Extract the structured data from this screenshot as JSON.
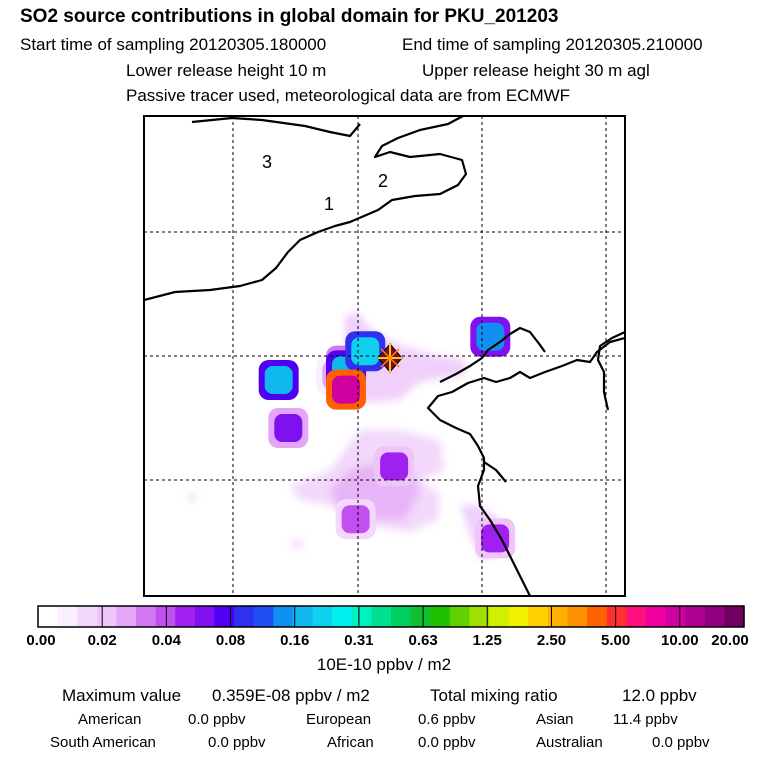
{
  "header": {
    "title": "SO2 source contributions in global domain for PKU_201203",
    "start_time": "Start time of sampling 20120305.180000",
    "end_time": "End time of sampling 20120305.210000",
    "lower_release": "Lower release height   10 m",
    "upper_release": "Upper release height   30 m    agl",
    "tracer_note": "Passive tracer used, meteorological data are from ECMWF"
  },
  "map": {
    "region_labels": [
      "3",
      "2",
      "1"
    ],
    "receptor_marker": "receptor-site"
  },
  "chart_data": {
    "type": "heatmap",
    "title": "SO2 source contributions in global domain for PKU_201203",
    "colorbar": {
      "tick_labels": [
        "0.00",
        "0.02",
        "0.04",
        "0.08",
        "0.16",
        "0.31",
        "0.63",
        "1.25",
        "2.50",
        "5.00",
        "10.00",
        "20.00"
      ],
      "units": "10E-10 ppbv / m2",
      "colors": [
        "#ffffff",
        "#fbeefe",
        "#f4d8fc",
        "#eec4fb",
        "#e3a6f8",
        "#d27af3",
        "#c050ef",
        "#a020f0",
        "#8010f0",
        "#5000f0",
        "#3030f0",
        "#2050f5",
        "#1090f0",
        "#10b8f0",
        "#10d0f0",
        "#00f0f0",
        "#00f0c0",
        "#00e090",
        "#00d060",
        "#10c030",
        "#20c000",
        "#60d000",
        "#a0e000",
        "#d0f000",
        "#f0f000",
        "#ffd000",
        "#ffb000",
        "#ff9000",
        "#ff6000",
        "#ff3030",
        "#ff1080",
        "#f000a0",
        "#d000a0",
        "#b00090",
        "#900080",
        "#700060"
      ]
    },
    "cells": [
      {
        "lon_rel": 0.42,
        "lat_rel": 0.57,
        "level": 32
      },
      {
        "lon_rel": 0.46,
        "lat_rel": 0.49,
        "level": 14
      },
      {
        "lon_rel": 0.42,
        "lat_rel": 0.53,
        "level": 13
      },
      {
        "lon_rel": 0.28,
        "lat_rel": 0.55,
        "level": 13
      },
      {
        "lon_rel": 0.72,
        "lat_rel": 0.46,
        "level": 12
      },
      {
        "lon_rel": 0.42,
        "lat_rel": 0.52,
        "level": 9
      },
      {
        "lon_rel": 0.42,
        "lat_rel": 0.55,
        "level": 9
      },
      {
        "lon_rel": 0.3,
        "lat_rel": 0.65,
        "level": 8
      },
      {
        "lon_rel": 0.52,
        "lat_rel": 0.73,
        "level": 7
      },
      {
        "lon_rel": 0.73,
        "lat_rel": 0.88,
        "level": 7
      },
      {
        "lon_rel": 0.44,
        "lat_rel": 0.84,
        "level": 6
      },
      {
        "lon_rel": 0.4,
        "lat_rel": 0.54,
        "level": 4
      }
    ]
  },
  "footer": {
    "max_label": "Maximum value",
    "max_value": "0.359E-08 ppbv / m2",
    "total_label": "Total mixing ratio",
    "total_value": "12.0 ppbv",
    "regions": [
      {
        "name": "American",
        "value": "0.0 ppbv"
      },
      {
        "name": "European",
        "value": "0.6 ppbv"
      },
      {
        "name": "Asian",
        "value": "11.4 ppbv"
      },
      {
        "name": "South American",
        "value": "0.0 ppbv"
      },
      {
        "name": "African",
        "value": "0.0 ppbv"
      },
      {
        "name": "Australian",
        "value": "0.0 ppbv"
      }
    ]
  }
}
